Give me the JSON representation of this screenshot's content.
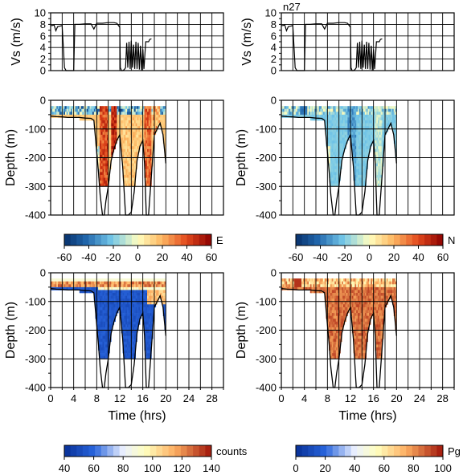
{
  "figure": {
    "label": "n27"
  },
  "colors": {
    "trace": "#000000",
    "grid": "#000000",
    "background": "#ffffff",
    "scale_low": "#08306b",
    "scale_mid": "#ffffc0",
    "scale_high": "#8b0000"
  },
  "chart_data": [
    {
      "type": "line",
      "panel": "top-left",
      "ylabel": "Vs (m/s)",
      "xlim": [
        0,
        30
      ],
      "ylim": [
        0,
        10
      ],
      "yticks": [
        "0",
        "2",
        "4",
        "6",
        "8",
        "10"
      ],
      "series": [
        {
          "x": [
            0,
            0.3,
            0.6,
            0.9,
            1.2,
            1.6,
            2.0,
            2.4,
            2.7,
            3.0,
            3.3,
            4.0,
            4.2,
            5,
            6,
            7,
            7.5,
            8,
            9,
            10,
            11,
            11.5,
            12,
            12.1,
            12.3,
            12.5,
            12.8,
            13,
            13.2,
            13.4,
            13.6,
            13.8,
            14,
            14.2,
            14.4,
            14.6,
            14.8,
            15,
            15.2,
            15.4,
            15.6,
            15.8,
            16,
            16.2,
            16.5,
            17,
            17.2,
            17.5
          ],
          "y": [
            7.8,
            7.8,
            7.9,
            6.9,
            7.6,
            7.7,
            7.8,
            0.5,
            0,
            0,
            0,
            0,
            8.0,
            8.0,
            8.1,
            8.1,
            7.2,
            8.2,
            8.2,
            8.3,
            8.3,
            8.2,
            7.5,
            0.5,
            0,
            0,
            0.2,
            0.5,
            4.8,
            0.5,
            5.0,
            0.3,
            5.2,
            0.5,
            4.5,
            0.3,
            5.0,
            0.3,
            4.8,
            0.2,
            4.3,
            0,
            3.7,
            0.3,
            5.0,
            5.0,
            5.4,
            5.5
          ]
        }
      ]
    },
    {
      "type": "line",
      "panel": "top-right",
      "ylabel": "Vs (m/s)",
      "xlim": [
        0,
        30
      ],
      "ylim": [
        0,
        10
      ],
      "yticks": [
        "0",
        "2",
        "4",
        "6",
        "8",
        "10"
      ],
      "series": [
        {
          "x": [
            0,
            0.3,
            0.6,
            0.9,
            1.2,
            1.6,
            2.0,
            2.4,
            2.7,
            3.0,
            3.3,
            4.0,
            4.2,
            5,
            6,
            7,
            7.5,
            8,
            9,
            10,
            11,
            11.5,
            12,
            12.1,
            12.3,
            12.5,
            12.8,
            13,
            13.2,
            13.4,
            13.6,
            13.8,
            14,
            14.2,
            14.4,
            14.6,
            14.8,
            15,
            15.2,
            15.4,
            15.6,
            15.8,
            16,
            16.2,
            16.5,
            17,
            17.2,
            17.5
          ],
          "y": [
            7.8,
            7.8,
            7.9,
            6.9,
            7.6,
            7.7,
            7.8,
            0.5,
            0,
            0,
            0,
            0,
            8.0,
            8.0,
            8.1,
            8.1,
            7.2,
            8.2,
            8.2,
            8.3,
            8.3,
            8.2,
            7.5,
            0.5,
            0,
            0,
            0.2,
            0.5,
            4.8,
            0.5,
            5.0,
            0.3,
            5.2,
            0.5,
            4.5,
            0.3,
            5.0,
            0.3,
            4.8,
            0.2,
            4.3,
            0,
            3.7,
            0.3,
            5.0,
            5.0,
            5.4,
            5.5
          ]
        }
      ]
    },
    {
      "type": "heatmap",
      "panel": "mid-left",
      "ylabel": "Depth (m)",
      "xlim": [
        0,
        30
      ],
      "ylim": [
        -400,
        0
      ],
      "yticks": [
        "0",
        "-100",
        "-200",
        "-300",
        "-400"
      ],
      "colorbar": {
        "label": "E",
        "ticks": [
          "-60",
          "-40",
          "-20",
          "0",
          "20",
          "40",
          "60"
        ],
        "range": [
          -60,
          60
        ]
      }
    },
    {
      "type": "heatmap",
      "panel": "mid-right",
      "ylabel": "Depth (m)",
      "xlim": [
        0,
        30
      ],
      "ylim": [
        -400,
        0
      ],
      "yticks": [
        "0",
        "-100",
        "-200",
        "-300",
        "-400"
      ],
      "colorbar": {
        "label": "N",
        "ticks": [
          "-60",
          "-40",
          "-20",
          "0",
          "20",
          "40",
          "60"
        ],
        "range": [
          -60,
          60
        ]
      }
    },
    {
      "type": "heatmap",
      "panel": "bottom-left",
      "ylabel": "Depth (m)",
      "xlabel": "Time (hrs)",
      "xlim": [
        0,
        30
      ],
      "ylim": [
        -400,
        0
      ],
      "xticks": [
        "0",
        "4",
        "8",
        "12",
        "16",
        "20",
        "24",
        "28"
      ],
      "yticks": [
        "0",
        "-100",
        "-200",
        "-300",
        "-400"
      ],
      "colorbar": {
        "label": "counts",
        "ticks": [
          "40",
          "60",
          "80",
          "100",
          "120",
          "140"
        ],
        "range": [
          40,
          140
        ]
      }
    },
    {
      "type": "heatmap",
      "panel": "bottom-right",
      "ylabel": "Depth (m)",
      "xlabel": "Time (hrs)",
      "xlim": [
        0,
        30
      ],
      "ylim": [
        -400,
        0
      ],
      "xticks": [
        "0",
        "4",
        "8",
        "12",
        "16",
        "20",
        "24",
        "28"
      ],
      "yticks": [
        "0",
        "-100",
        "-200",
        "-300",
        "-400"
      ],
      "colorbar": {
        "label": "Pg",
        "ticks": [
          "0",
          "20",
          "40",
          "60",
          "80",
          "100"
        ],
        "range": [
          0,
          100
        ]
      }
    }
  ],
  "bottom_depth": {
    "x": [
      0,
      1,
      2,
      3,
      4,
      5,
      6,
      7,
      7.5,
      8,
      8.3,
      8.6,
      9,
      9.3,
      9.6,
      10,
      10.5,
      11,
      11.5,
      12,
      12.5,
      13,
      13.5,
      14,
      14.5,
      15,
      15.5,
      16,
      16.3,
      16.6,
      17,
      18,
      19,
      19.5,
      20
    ],
    "y": [
      -55,
      -57,
      -58,
      -60,
      -60,
      -60,
      -62,
      -63,
      -70,
      -180,
      -250,
      -330,
      -400,
      -400,
      -350,
      -300,
      -210,
      -170,
      -140,
      -120,
      -230,
      -400,
      -400,
      -390,
      -320,
      -210,
      -160,
      -140,
      -220,
      -400,
      -400,
      -120,
      -80,
      -120,
      -220
    ]
  }
}
